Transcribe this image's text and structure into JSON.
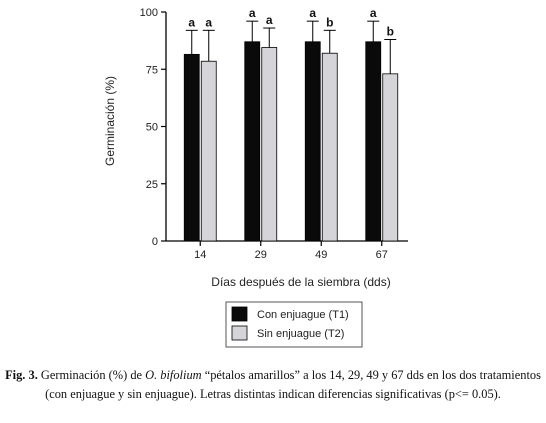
{
  "chart_data": {
    "type": "bar",
    "categories": [
      "14",
      "29",
      "49",
      "67"
    ],
    "series": [
      {
        "name": "Con enjuague (T1)",
        "color": "#0a0a0a",
        "values": [
          81.5,
          87,
          87,
          87
        ],
        "errors": [
          10.5,
          9,
          9,
          9
        ],
        "letters": [
          "a",
          "a",
          "a",
          "a"
        ]
      },
      {
        "name": "Sin enjuague (T2)",
        "color": "#d4d4d9",
        "values": [
          78.5,
          84.5,
          82,
          73
        ],
        "errors": [
          13.5,
          8.5,
          10,
          15
        ],
        "letters": [
          "a",
          "a",
          "b",
          "b"
        ]
      }
    ],
    "xlabel": "Días después de la siembra (dds)",
    "ylabel": "Germinación (%)",
    "ylim": [
      0,
      100
    ],
    "yticks": [
      0,
      25,
      50,
      75,
      100
    ],
    "grid": false,
    "legend": "below"
  },
  "caption": {
    "label": "Fig. 3.",
    "text_1": " Germinación (%) de ",
    "species": "O. bifolium",
    "text_2": " “pétalos amarillos” a los 14, 29, 49 y 67 dds en los dos tratamientos (con enjuague y sin enjuague). Letras distintas indican diferencias significativas (p<= 0.05)."
  }
}
